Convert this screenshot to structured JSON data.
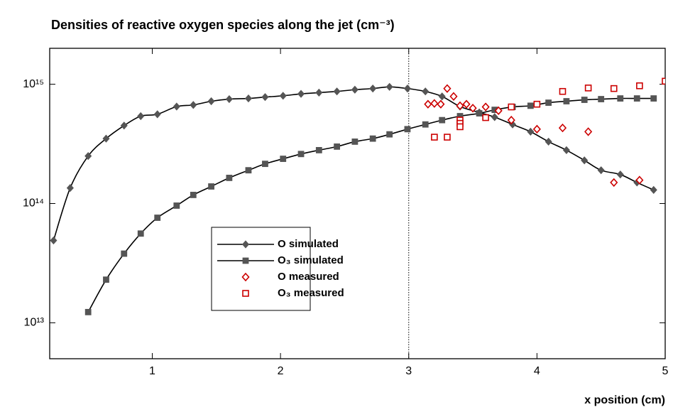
{
  "chart_data": {
    "type": "line",
    "title": "Densities of reactive oxygen species along the jet (cm⁻³)",
    "x_label": "x position (cm)",
    "xlim": [
      0.2,
      5
    ],
    "xticks": [
      1,
      2,
      3,
      4,
      5
    ],
    "ylim": [
      5000000000000.0,
      2000000000000000.0
    ],
    "log_y": true,
    "yticks": [
      {
        "value": 10000000000000.0,
        "label": "10¹³"
      },
      {
        "value": 100000000000000.0,
        "label": "10¹⁴"
      },
      {
        "value": 1000000000000000.0,
        "label": "10¹⁵"
      }
    ],
    "vline": 3,
    "legend": "lower-left-center",
    "series": [
      {
        "name": "O simulated",
        "color": "#555555",
        "mode": "lines+markers",
        "marker": "diamond",
        "x": [
          0.23,
          0.36,
          0.5,
          0.64,
          0.78,
          0.91,
          1.04,
          1.19,
          1.32,
          1.46,
          1.6,
          1.75,
          1.88,
          2.02,
          2.16,
          2.3,
          2.44,
          2.58,
          2.72,
          2.85,
          2.99,
          3.13,
          3.26,
          3.4,
          3.55,
          3.67,
          3.81,
          3.95,
          4.09,
          4.23,
          4.37,
          4.5,
          4.65,
          4.78,
          4.91
        ],
        "values": [
          49000000000000.0,
          135000000000000.0,
          250000000000000.0,
          350000000000000.0,
          450000000000000.0,
          540000000000000.0,
          560000000000000.0,
          650000000000000.0,
          670000000000000.0,
          720000000000000.0,
          750000000000000.0,
          760000000000000.0,
          780000000000000.0,
          800000000000000.0,
          830000000000000.0,
          850000000000000.0,
          870000000000000.0,
          900000000000000.0,
          920000000000000.0,
          950000000000000.0,
          920000000000000.0,
          870000000000000.0,
          790000000000000.0,
          650000000000000.0,
          580000000000000.0,
          530000000000000.0,
          460000000000000.0,
          400000000000000.0,
          330000000000000.0,
          280000000000000.0,
          230000000000000.0,
          190000000000000.0,
          175000000000000.0,
          150000000000000.0,
          130000000000000.0
        ]
      },
      {
        "name": "O₃ simulated",
        "color": "#555555",
        "mode": "lines+markers",
        "marker": "square",
        "x": [
          0.5,
          0.64,
          0.78,
          0.91,
          1.04,
          1.19,
          1.32,
          1.46,
          1.6,
          1.75,
          1.88,
          2.02,
          2.16,
          2.3,
          2.44,
          2.58,
          2.72,
          2.85,
          2.99,
          3.13,
          3.26,
          3.4,
          3.55,
          3.67,
          3.81,
          3.95,
          4.09,
          4.23,
          4.37,
          4.5,
          4.65,
          4.78,
          4.91
        ],
        "values": [
          12300000000000.0,
          23000000000000.0,
          38000000000000.0,
          56000000000000.0,
          76000000000000.0,
          96000000000000.0,
          118000000000000.0,
          139000000000000.0,
          164000000000000.0,
          190000000000000.0,
          215000000000000.0,
          237000000000000.0,
          260000000000000.0,
          280000000000000.0,
          300000000000000.0,
          330000000000000.0,
          350000000000000.0,
          380000000000000.0,
          420000000000000.0,
          460000000000000.0,
          500000000000000.0,
          540000000000000.0,
          570000000000000.0,
          610000000000000.0,
          645000000000000.0,
          660000000000000.0,
          700000000000000.0,
          720000000000000.0,
          740000000000000.0,
          750000000000000.0,
          760000000000000.0,
          760000000000000.0,
          760000000000000.0
        ]
      },
      {
        "name": "O measured",
        "color": "#cc0000",
        "mode": "markers",
        "marker": "diamond",
        "x": [
          3.15,
          3.2,
          3.25,
          3.3,
          3.35,
          3.4,
          3.45,
          3.5,
          3.6,
          3.7,
          3.8,
          4.0,
          4.2,
          4.4,
          4.6,
          4.8
        ],
        "values": [
          680000000000000.0,
          690000000000000.0,
          680000000000000.0,
          920000000000000.0,
          790000000000000.0,
          660000000000000.0,
          680000000000000.0,
          630000000000000.0,
          645000000000000.0,
          600000000000000.0,
          500000000000000.0,
          420000000000000.0,
          430000000000000.0,
          400000000000000.0,
          150000000000000.0,
          157000000000000.0
        ]
      },
      {
        "name": "O₃ measured",
        "color": "#cc0000",
        "mode": "markers",
        "marker": "square",
        "x": [
          3.2,
          3.3,
          3.4,
          3.4,
          3.4,
          3.6,
          3.8,
          4.0,
          4.2,
          4.4,
          4.6,
          4.8,
          5.0
        ],
        "values": [
          360000000000000.0,
          360000000000000.0,
          500000000000000.0,
          470000000000000.0,
          440000000000000.0,
          525000000000000.0,
          645000000000000.0,
          680000000000000.0,
          870000000000000.0,
          930000000000000.0,
          920000000000000.0,
          970000000000000.0,
          1060000000000000.0
        ]
      }
    ]
  }
}
